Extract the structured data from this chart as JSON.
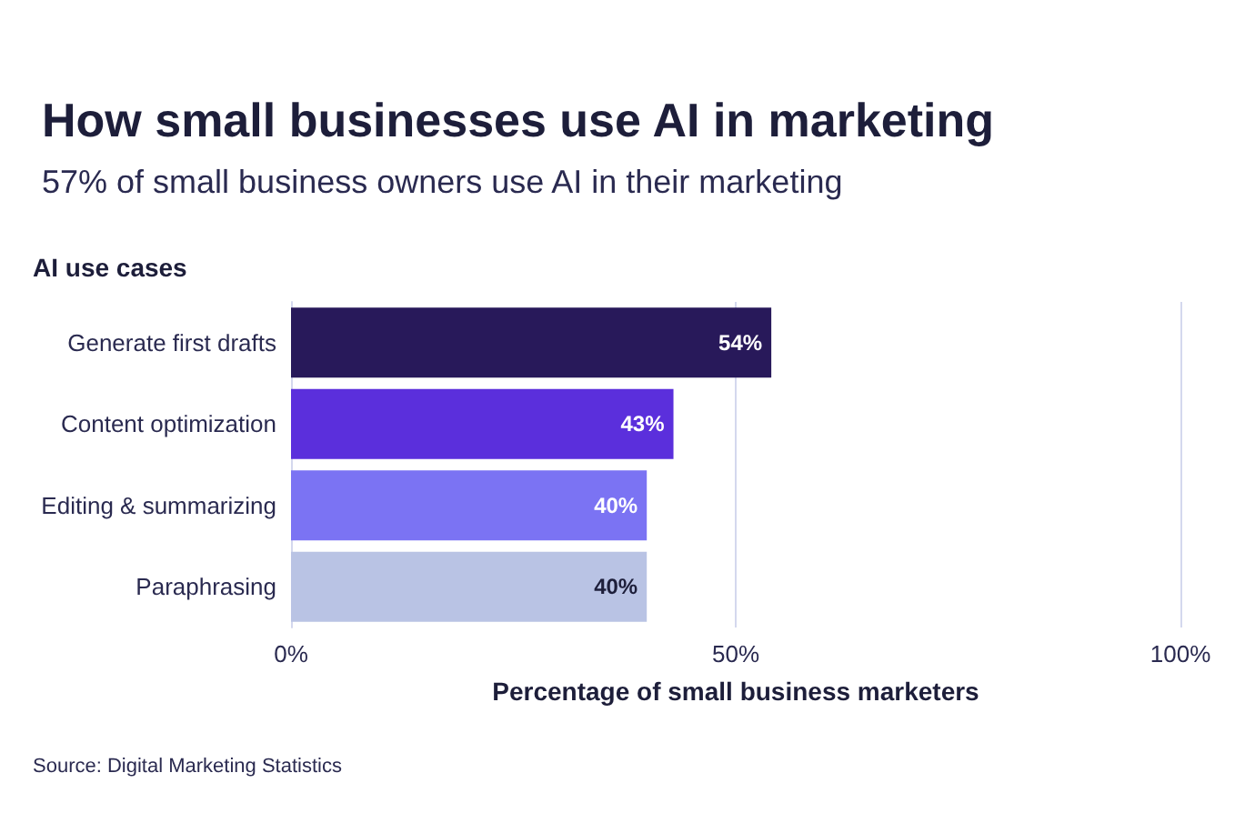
{
  "chart_data": {
    "type": "bar",
    "orientation": "horizontal",
    "title": "How small businesses use AI in marketing",
    "subtitle": "57% of small business owners use AI in their marketing",
    "ylabel": "AI use cases",
    "xlabel": "Percentage of small business marketers",
    "categories": [
      "Generate first drafts",
      "Content optimization",
      "Editing & summarizing",
      "Paraphrasing"
    ],
    "values": [
      54,
      43,
      40,
      40
    ],
    "colors": [
      "#28195a",
      "#5b2fdc",
      "#7b73f3",
      "#b9c3e4"
    ],
    "xlim": [
      0,
      100
    ],
    "xticks": [
      {
        "value": 0,
        "label": "0%"
      },
      {
        "value": 50,
        "label": "50%"
      },
      {
        "value": 100,
        "label": "100%"
      }
    ],
    "value_labels": [
      "54%",
      "43%",
      "40%",
      "40%"
    ],
    "grid": "x",
    "annotations": [
      "Source: Digital Marketing Statistics"
    ]
  }
}
